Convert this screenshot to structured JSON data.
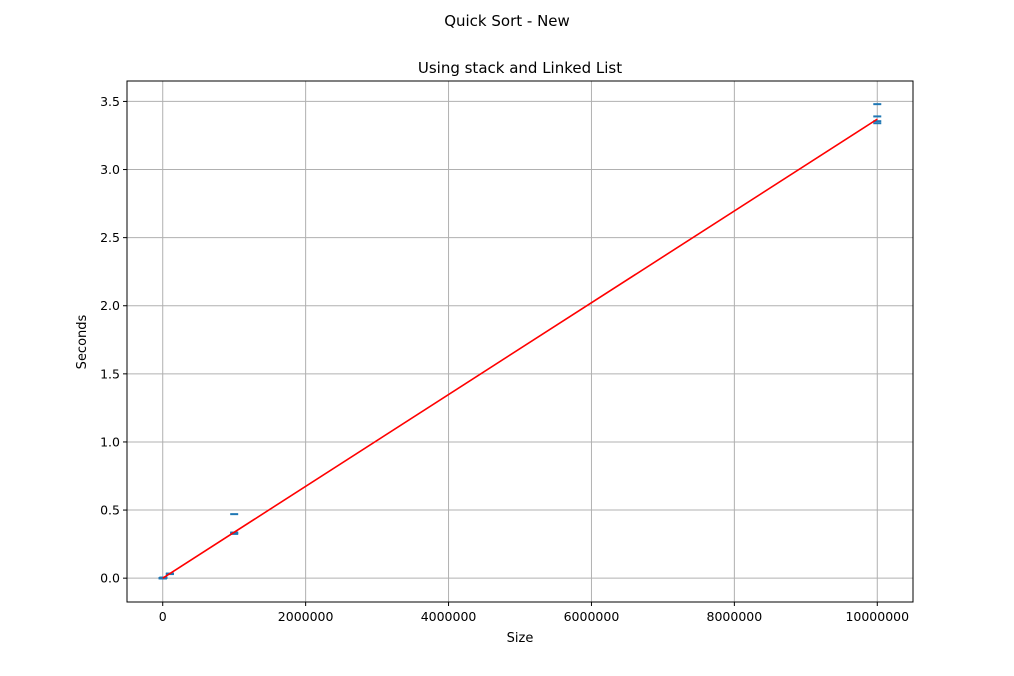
{
  "chart_data": {
    "type": "scatter",
    "suptitle": "Quick Sort - New",
    "title": "Using stack and Linked List",
    "xlabel": "Size",
    "ylabel": "Seconds",
    "xlim": [
      -500000,
      10500000
    ],
    "ylim": [
      -0.175,
      3.65
    ],
    "xticks": [
      0,
      2000000,
      4000000,
      6000000,
      8000000,
      10000000
    ],
    "xtick_labels": [
      "0",
      "2000000",
      "4000000",
      "6000000",
      "8000000",
      "10000000"
    ],
    "yticks": [
      0.0,
      0.5,
      1.0,
      1.5,
      2.0,
      2.5,
      3.0,
      3.5
    ],
    "ytick_labels": [
      "0.0",
      "0.5",
      "1.0",
      "1.5",
      "2.0",
      "2.5",
      "3.0",
      "3.5"
    ],
    "grid": true,
    "series": [
      {
        "kind": "points",
        "marker": "_",
        "color": "#1f77b4",
        "x": [
          10,
          10,
          10,
          100,
          100,
          100,
          1000,
          1000,
          1000,
          10000,
          10000,
          10000,
          100000,
          100000,
          100000,
          1000000,
          1000000,
          1000000,
          1000000,
          10000000,
          10000000,
          10000000,
          10000000
        ],
        "y": [
          0.0,
          0.0,
          0.0,
          0.0,
          0.0,
          0.0,
          0.0,
          0.0,
          0.0,
          0.003,
          0.003,
          0.004,
          0.03,
          0.032,
          0.034,
          0.325,
          0.33,
          0.335,
          0.47,
          3.34,
          3.355,
          3.39,
          3.48
        ]
      },
      {
        "kind": "line",
        "color": "#ff0000",
        "x": [
          0,
          10000000
        ],
        "y": [
          0.0,
          3.37
        ]
      }
    ]
  }
}
